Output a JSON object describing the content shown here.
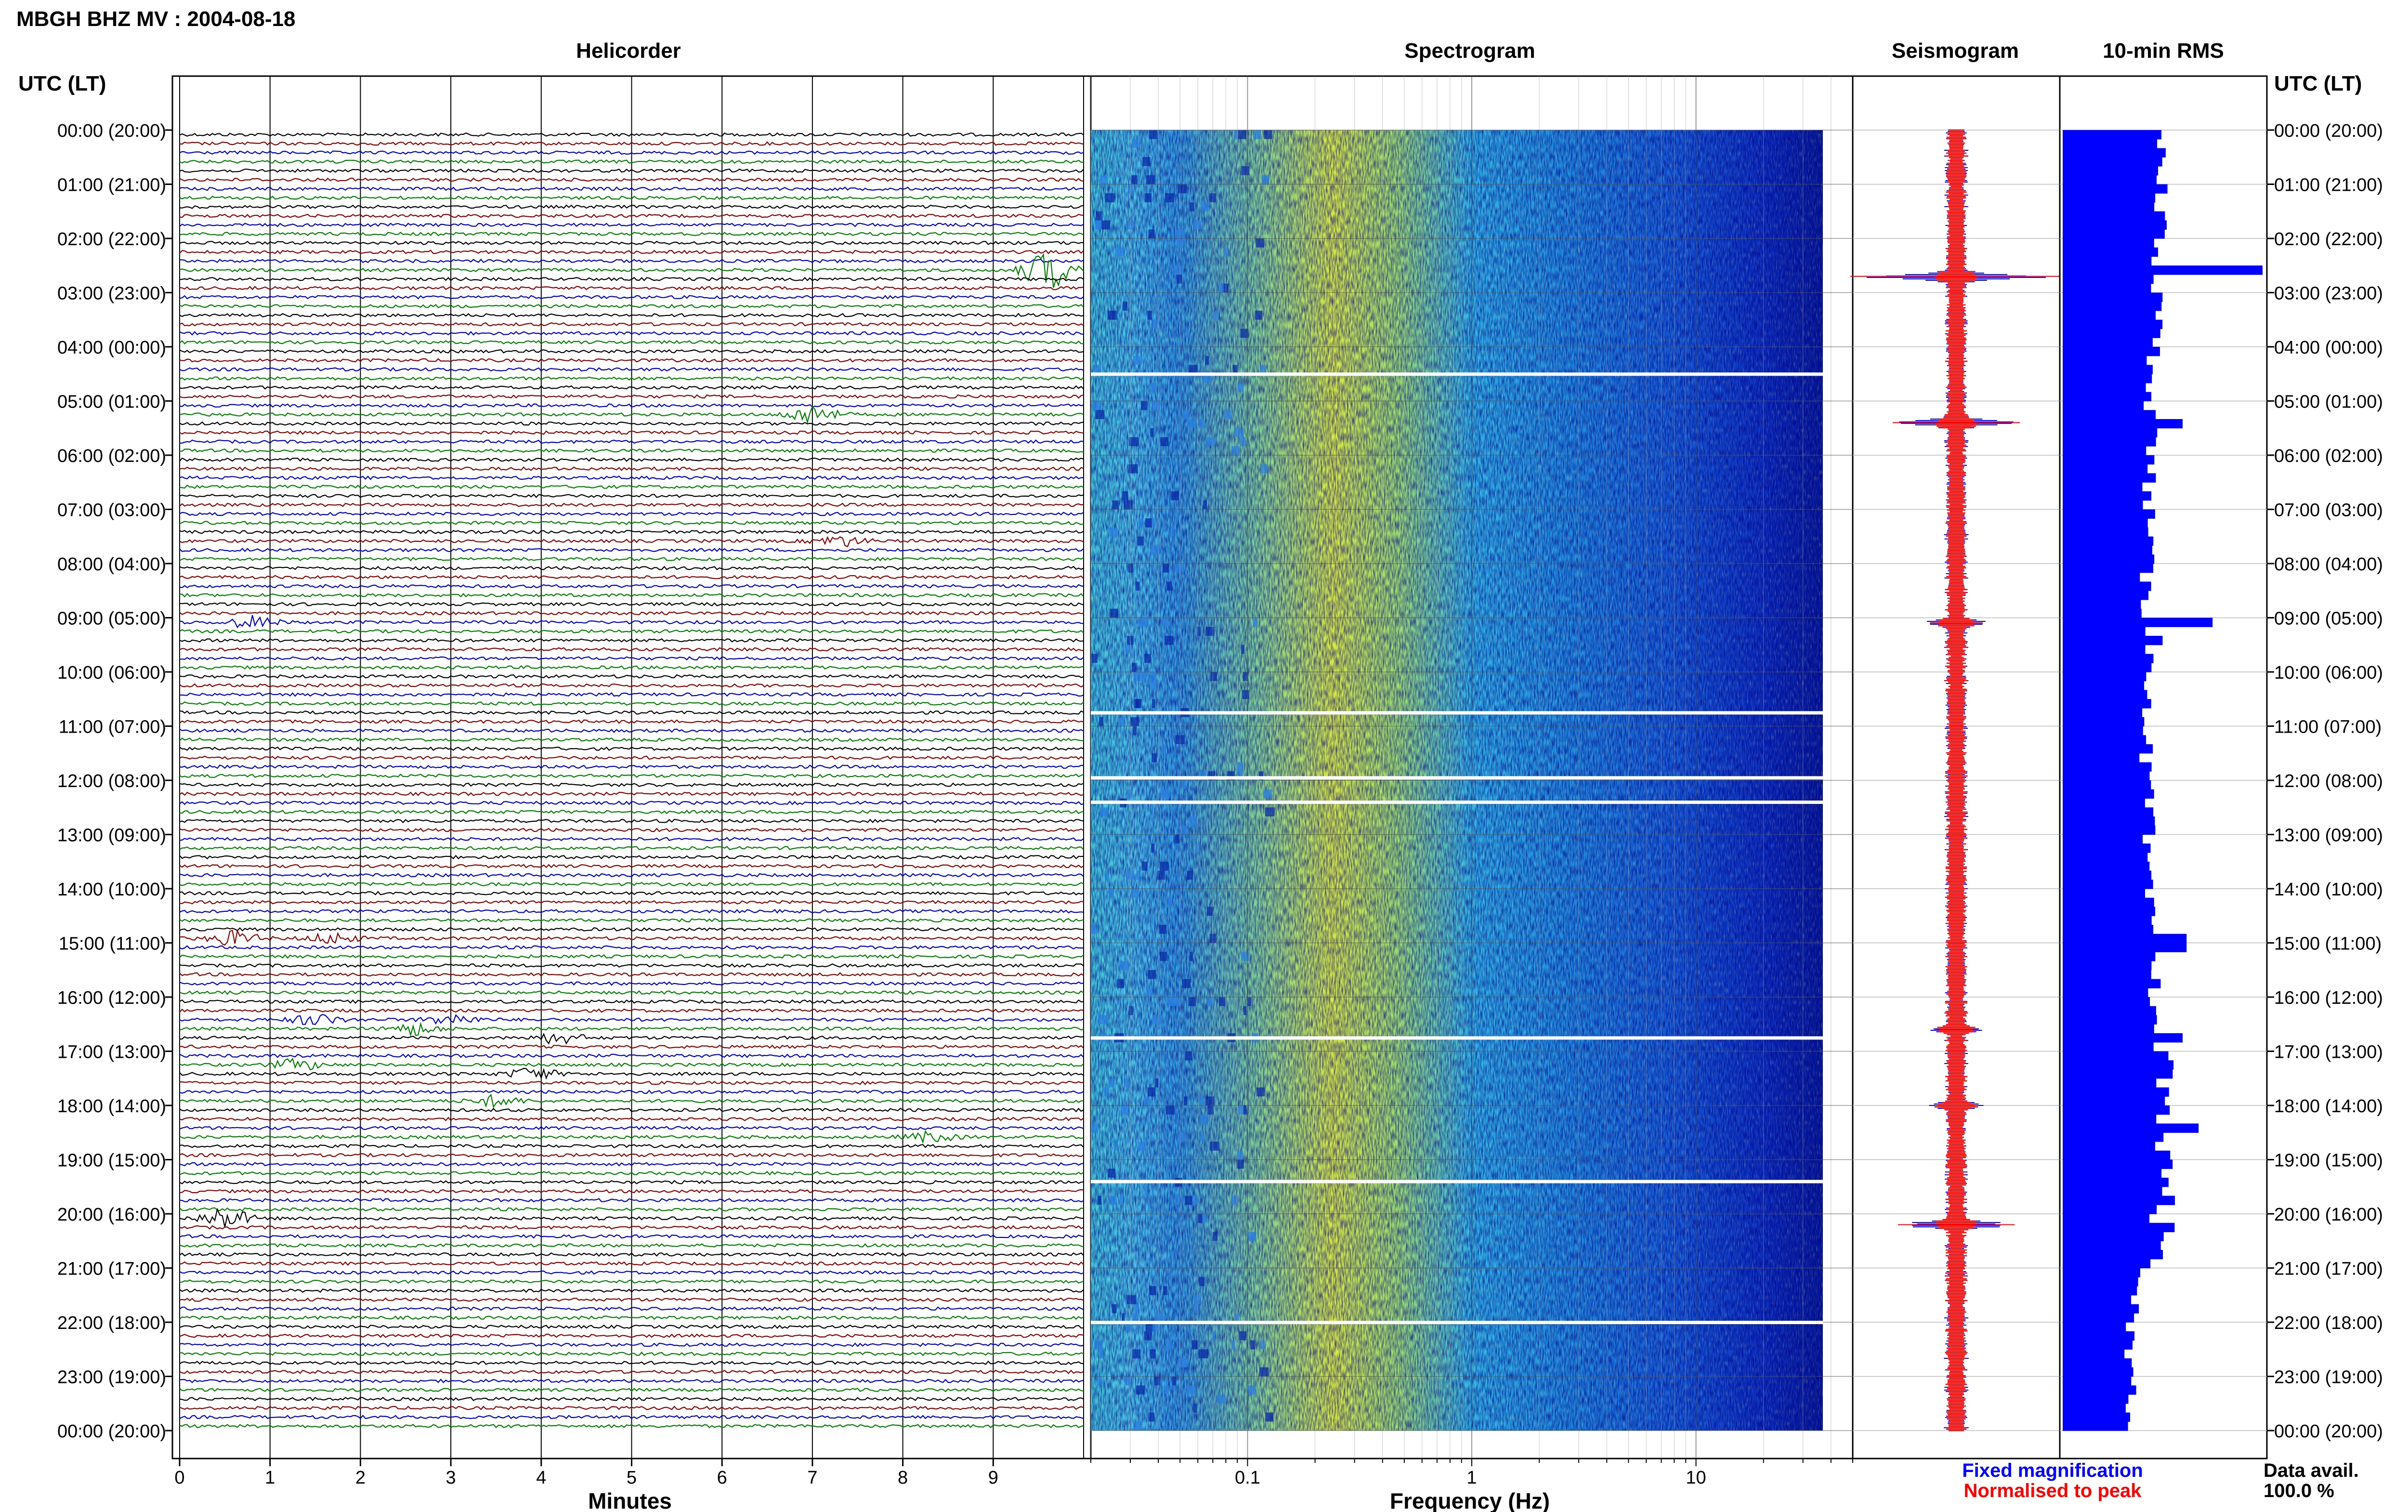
{
  "figure": {
    "title": "MBGH BHZ MV : 2004-08-18",
    "timezone_header_left": "UTC (LT)",
    "timezone_header_right": "UTC (LT)",
    "colors": {
      "trace_cycle": [
        "#000000",
        "#8b0000",
        "#0000cc",
        "#008000"
      ],
      "rms_bar": "#0000ff",
      "seismogram_peak": "#ff0000",
      "seismogram_fixed": "#0000ff"
    }
  },
  "chart_data": [
    {
      "type": "helicorder",
      "panel_title": "Helicorder",
      "xlabel": "Minutes",
      "x_ticks": [
        "0",
        "1",
        "2",
        "3",
        "4",
        "5",
        "6",
        "7",
        "8",
        "9"
      ],
      "xlim": [
        0,
        10
      ],
      "rows_per_hour": 6,
      "hours": 24,
      "time_labels": [
        "00:00 (20:00)",
        "01:00 (21:00)",
        "02:00 (22:00)",
        "03:00 (23:00)",
        "04:00 (00:00)",
        "05:00 (01:00)",
        "06:00 (02:00)",
        "07:00 (03:00)",
        "08:00 (04:00)",
        "09:00 (05:00)",
        "10:00 (06:00)",
        "11:00 (07:00)",
        "12:00 (08:00)",
        "13:00 (09:00)",
        "14:00 (10:00)",
        "15:00 (11:00)",
        "16:00 (12:00)",
        "17:00 (13:00)",
        "18:00 (14:00)",
        "19:00 (15:00)",
        "20:00 (16:00)",
        "21:00 (17:00)",
        "22:00 (18:00)",
        "23:00 (19:00)",
        "00:00 (20:00)"
      ],
      "events": [
        {
          "row": 15,
          "minute": 9.6,
          "amplitude": 3.2
        },
        {
          "row": 31,
          "minute": 7.0,
          "amplitude": 1.6
        },
        {
          "row": 45,
          "minute": 7.3,
          "amplitude": 0.9
        },
        {
          "row": 54,
          "minute": 0.8,
          "amplitude": 1.0
        },
        {
          "row": 89,
          "minute": 0.6,
          "amplitude": 1.2
        },
        {
          "row": 89,
          "minute": 1.7,
          "amplitude": 0.9
        },
        {
          "row": 98,
          "minute": 1.5,
          "amplitude": 0.9
        },
        {
          "row": 98,
          "minute": 3.0,
          "amplitude": 0.9
        },
        {
          "row": 99,
          "minute": 2.6,
          "amplitude": 1.0
        },
        {
          "row": 100,
          "minute": 4.2,
          "amplitude": 0.9
        },
        {
          "row": 103,
          "minute": 1.3,
          "amplitude": 0.9
        },
        {
          "row": 104,
          "minute": 3.9,
          "amplitude": 1.0
        },
        {
          "row": 107,
          "minute": 3.5,
          "amplitude": 0.9
        },
        {
          "row": 111,
          "minute": 8.3,
          "amplitude": 0.8
        },
        {
          "row": 120,
          "minute": 0.5,
          "amplitude": 1.8
        }
      ]
    },
    {
      "type": "heatmap",
      "panel_title": "Spectrogram",
      "xlabel": "Frequency (Hz)",
      "x_scale": "log",
      "xlim": [
        0.02,
        50
      ],
      "x_ticks": [
        "0.1",
        "1",
        "10"
      ],
      "colormap": "jet",
      "gap_rows_hours": [
        4.5,
        10.75,
        11.95,
        12.4,
        16.75,
        19.4,
        22.0
      ]
    },
    {
      "type": "bar",
      "panel_title": "Seismogram",
      "orientation": "horizontal",
      "legend": [
        {
          "label": "Fixed magnification",
          "color": "#0000ff"
        },
        {
          "label": "Normalised to peak",
          "color": "#ff0000"
        }
      ],
      "spikes": [
        {
          "hour": 2.7,
          "amplitude": 1.0
        },
        {
          "hour": 5.4,
          "amplitude": 0.6
        },
        {
          "hour": 9.1,
          "amplitude": 0.25
        },
        {
          "hour": 16.6,
          "amplitude": 0.2
        },
        {
          "hour": 18.0,
          "amplitude": 0.2
        },
        {
          "hour": 20.2,
          "amplitude": 0.55
        }
      ]
    },
    {
      "type": "bar",
      "panel_title": "10-min RMS",
      "orientation": "horizontal",
      "x_scale_note": "relative",
      "data_availability_label": "Data avail.",
      "data_availability_value": "100.0 %",
      "hourly_rms": [
        0.5,
        0.49,
        0.48,
        0.47,
        0.46,
        0.45,
        0.44,
        0.43,
        0.42,
        0.43,
        0.44,
        0.42,
        0.43,
        0.42,
        0.43,
        0.46,
        0.48,
        0.52,
        0.5,
        0.52,
        0.47,
        0.36,
        0.34,
        0.35
      ],
      "rms_peaks": [
        {
          "hour": 2.65,
          "value": 1.0
        },
        {
          "hour": 5.4,
          "value": 0.6
        },
        {
          "hour": 9.15,
          "value": 0.75
        },
        {
          "hour": 9.35,
          "value": 0.5
        },
        {
          "hour": 15.0,
          "value": 0.62
        },
        {
          "hour": 16.75,
          "value": 0.6
        },
        {
          "hour": 17.7,
          "value": 0.52
        },
        {
          "hour": 18.4,
          "value": 0.68
        },
        {
          "hour": 19.15,
          "value": 0.55
        },
        {
          "hour": 20.25,
          "value": 0.56
        }
      ]
    }
  ]
}
